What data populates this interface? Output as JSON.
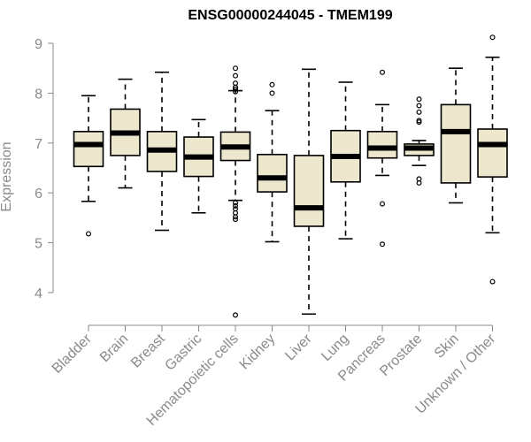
{
  "chart_data": {
    "type": "box",
    "title": "ENSG00000244045 - TMEM199",
    "ylabel": "Expression",
    "xlabel": "",
    "ylim": [
      3.4,
      9.2
    ],
    "yticks": [
      4,
      5,
      6,
      7,
      8,
      9
    ],
    "categories": [
      "Bladder",
      "Brain",
      "Breast",
      "Gastric",
      "Hematopoietic cells",
      "Kidney",
      "Liver",
      "Lung",
      "Pancreas",
      "Prostate",
      "Skin",
      "Unknown / Other"
    ],
    "boxes": [
      {
        "category": "Bladder",
        "whisker_low": 5.83,
        "q1": 6.53,
        "median": 6.97,
        "q3": 7.23,
        "whisker_high": 7.95,
        "outliers": [
          5.18
        ]
      },
      {
        "category": "Brain",
        "whisker_low": 6.1,
        "q1": 6.75,
        "median": 7.2,
        "q3": 7.68,
        "whisker_high": 8.28,
        "outliers": []
      },
      {
        "category": "Breast",
        "whisker_low": 5.25,
        "q1": 6.43,
        "median": 6.86,
        "q3": 7.23,
        "whisker_high": 8.42,
        "outliers": []
      },
      {
        "category": "Gastric",
        "whisker_low": 5.6,
        "q1": 6.33,
        "median": 6.72,
        "q3": 7.12,
        "whisker_high": 7.47,
        "outliers": []
      },
      {
        "category": "Hematopoietic cells",
        "whisker_low": 5.85,
        "q1": 6.65,
        "median": 6.92,
        "q3": 7.22,
        "whisker_high": 8.05,
        "outliers": [
          8.5,
          8.35,
          8.2,
          8.12,
          8.08,
          8.03,
          5.8,
          5.74,
          5.68,
          5.6,
          5.52,
          5.47,
          3.55
        ]
      },
      {
        "category": "Kidney",
        "whisker_low": 5.02,
        "q1": 6.02,
        "median": 6.3,
        "q3": 6.77,
        "whisker_high": 7.65,
        "outliers": [
          8.17,
          8.0
        ]
      },
      {
        "category": "Liver",
        "whisker_low": 3.57,
        "q1": 5.33,
        "median": 5.7,
        "q3": 6.75,
        "whisker_high": 8.48,
        "outliers": []
      },
      {
        "category": "Lung",
        "whisker_low": 5.08,
        "q1": 6.22,
        "median": 6.73,
        "q3": 7.25,
        "whisker_high": 8.22,
        "outliers": []
      },
      {
        "category": "Pancreas",
        "whisker_low": 6.35,
        "q1": 6.7,
        "median": 6.9,
        "q3": 7.23,
        "whisker_high": 7.77,
        "outliers": [
          8.42,
          5.78,
          4.97
        ]
      },
      {
        "category": "Prostate",
        "whisker_low": 6.55,
        "q1": 6.75,
        "median": 6.9,
        "q3": 6.98,
        "whisker_high": 7.05,
        "outliers": [
          7.88,
          7.75,
          7.62,
          7.45,
          7.42,
          6.28,
          6.2
        ]
      },
      {
        "category": "Skin",
        "whisker_low": 5.8,
        "q1": 6.2,
        "median": 7.23,
        "q3": 7.77,
        "whisker_high": 8.5,
        "outliers": []
      },
      {
        "category": "Unknown / Other",
        "whisker_low": 5.2,
        "q1": 6.32,
        "median": 6.97,
        "q3": 7.28,
        "whisker_high": 8.72,
        "outliers": [
          9.12,
          4.22
        ]
      }
    ],
    "box_fill": "#ede7cd",
    "box_stroke": "#000000",
    "axis_color": "#8a8a8a",
    "grid": false,
    "legend": "none"
  }
}
